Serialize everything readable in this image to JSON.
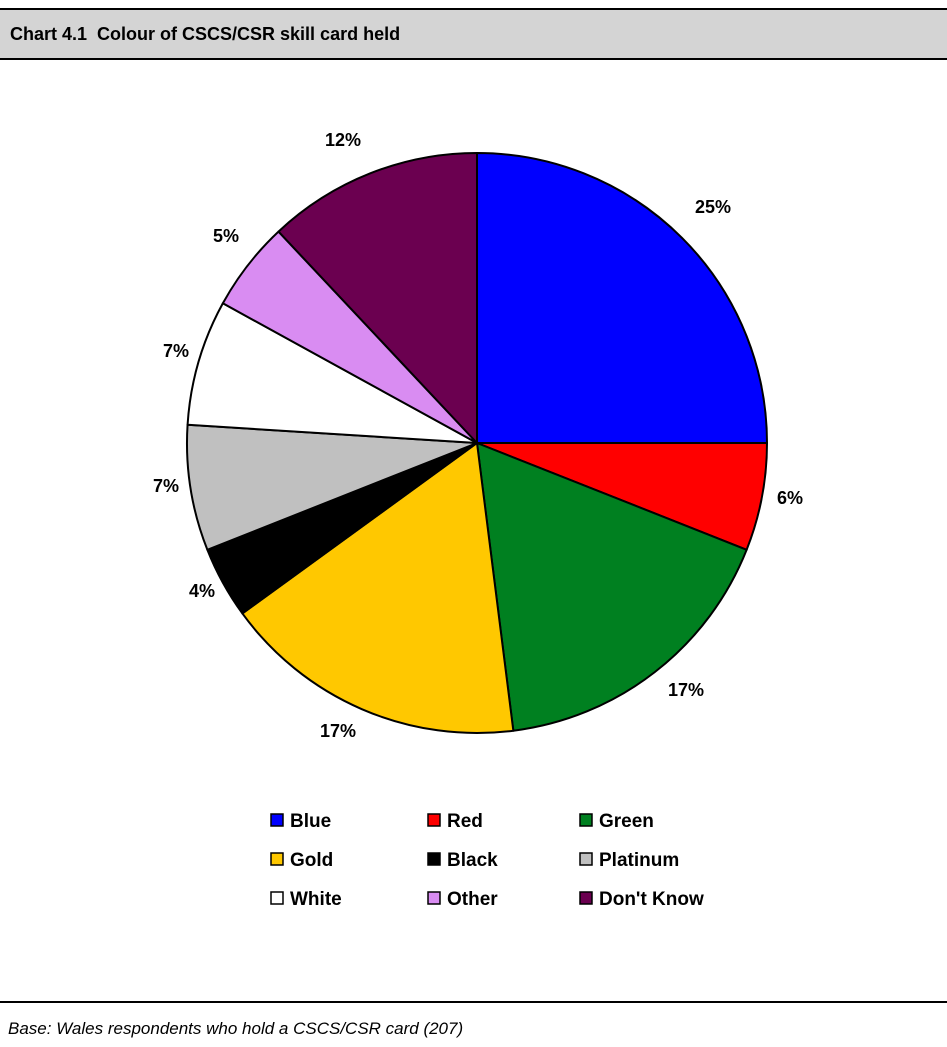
{
  "title": "Chart 4.1  Colour of CSCS/CSR skill card held",
  "base_note": "Base: Wales respondents who hold a CSCS/CSR card (207)",
  "chart_data": {
    "type": "pie",
    "title": "Chart 4.1  Colour of CSCS/CSR skill card held",
    "unit": "%",
    "legend_position": "bottom",
    "slices": [
      {
        "name": "Blue",
        "value": 25,
        "label": "25%",
        "color": "#0000ff"
      },
      {
        "name": "Red",
        "value": 6,
        "label": "6%",
        "color": "#ff0000"
      },
      {
        "name": "Green",
        "value": 17,
        "label": "17%",
        "color": "#008020"
      },
      {
        "name": "Gold",
        "value": 17,
        "label": "17%",
        "color": "#ffc800"
      },
      {
        "name": "Black",
        "value": 4,
        "label": "4%",
        "color": "#000000"
      },
      {
        "name": "Platinum",
        "value": 7,
        "label": "7%",
        "color": "#c0c0c0"
      },
      {
        "name": "White",
        "value": 7,
        "label": "7%",
        "color": "#ffffff"
      },
      {
        "name": "Other",
        "value": 5,
        "label": "5%",
        "color": "#d98cf2"
      },
      {
        "name": "Don't Know",
        "value": 12,
        "label": "12%",
        "color": "#6b0050"
      }
    ]
  }
}
